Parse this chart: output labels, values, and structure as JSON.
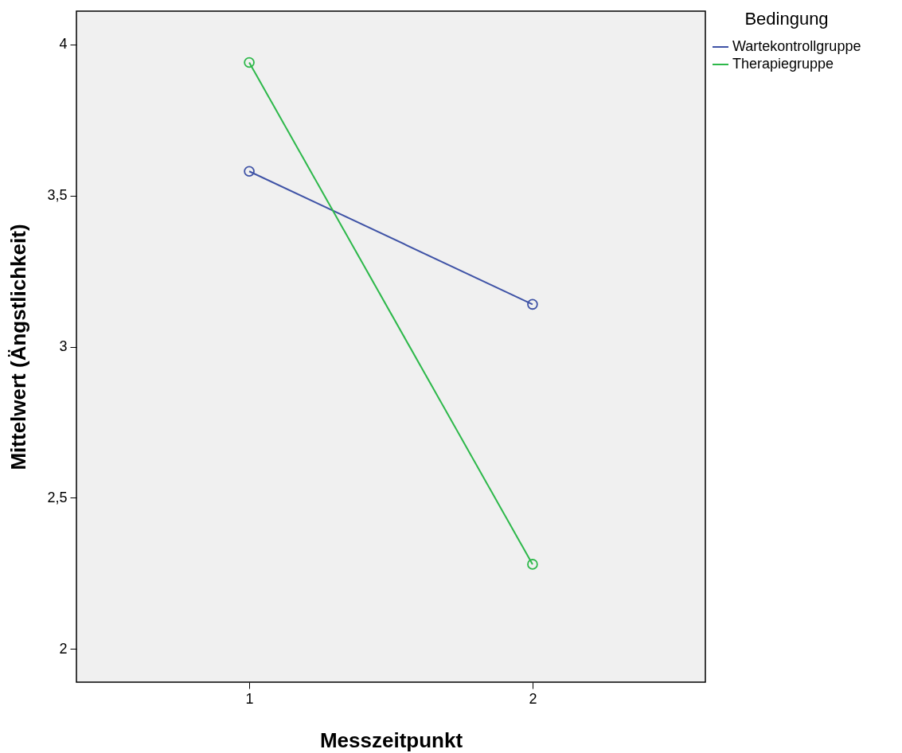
{
  "chart_data": {
    "type": "line",
    "xlabel": "Messzeitpunkt",
    "ylabel": "Mittelwert (Ängstlichkeit)",
    "legend_title": "Bedingung",
    "categories": [
      "1",
      "2"
    ],
    "series": [
      {
        "name": "Wartekontrollgruppe",
        "color": "#3f53a6",
        "values": [
          3.58,
          3.14
        ]
      },
      {
        "name": "Therapiegruppe",
        "color": "#2db84a",
        "values": [
          3.94,
          2.28
        ]
      }
    ],
    "ylim": [
      1.89,
      4.11
    ],
    "yticks": [
      2,
      {
        "value": 2.5,
        "label": "2,5"
      },
      3,
      {
        "value": 3.5,
        "label": "3,5"
      },
      4
    ],
    "grid": false,
    "legend": "top right",
    "marker": "circle",
    "line_style": "solid"
  }
}
